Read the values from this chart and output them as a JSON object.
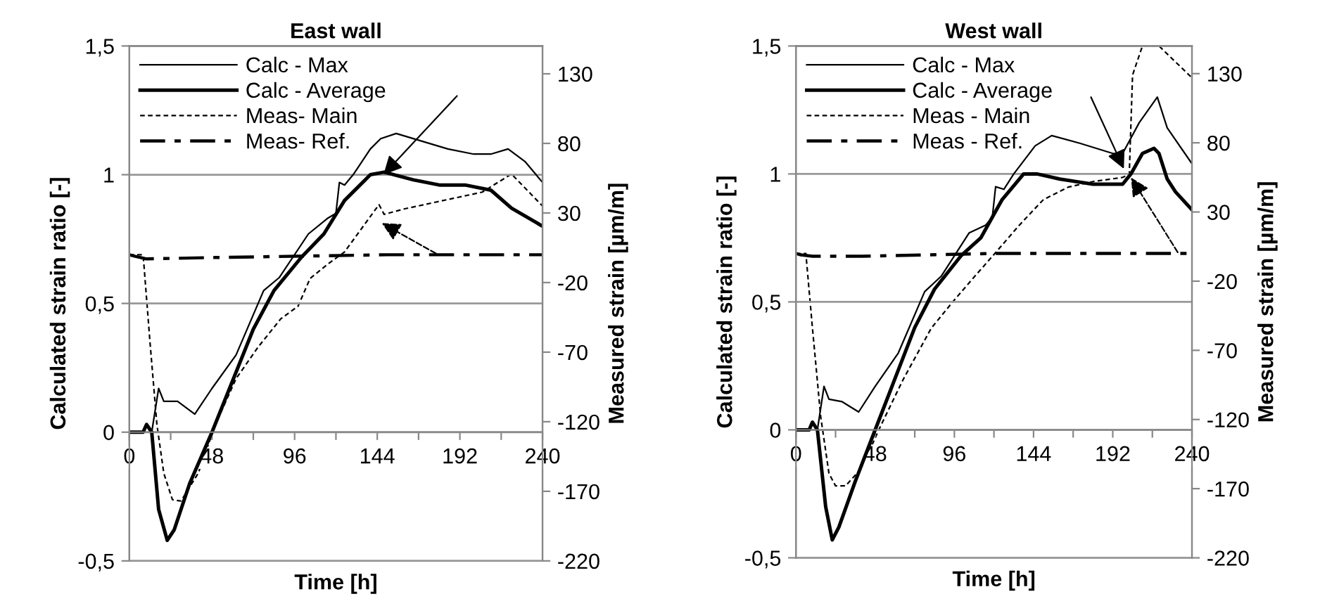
{
  "chart_data": [
    {
      "type": "line",
      "title": "East wall",
      "xlabel": "Time [h]",
      "ylabel": "Calculated strain ratio [-]",
      "y2label": "Measured strain [µm/m]",
      "xlim": [
        0,
        240
      ],
      "xticks": [
        0,
        {
          "value": 24,
          "label": null
        },
        48,
        {
          "value": 72,
          "label": null
        },
        96,
        {
          "value": 120,
          "label": null
        },
        144,
        {
          "value": 168,
          "label": null
        },
        192,
        {
          "value": 216,
          "label": null
        },
        240
      ],
      "ylim": [
        -0.5,
        1.5
      ],
      "yticks": [
        {
          "value": -0.5,
          "label": "-0,5"
        },
        0,
        {
          "value": 0.5,
          "label": "0,5"
        },
        1,
        {
          "value": 1.5,
          "label": "1,5"
        }
      ],
      "y2lim": [
        -220,
        150
      ],
      "y2ticks": [
        -220,
        -170,
        -120,
        -70,
        -20,
        30,
        80,
        130
      ],
      "grid": "y",
      "legend": "top left",
      "series": [
        {
          "name": "Calc - Max",
          "color": "#000000",
          "line_style": "solid",
          "x": [
            0,
            8,
            10,
            13,
            17,
            20,
            28,
            38,
            48,
            62,
            78,
            87,
            104,
            115,
            120,
            122,
            125,
            130,
            140,
            146,
            155,
            170,
            185,
            200,
            210,
            220,
            230,
            240
          ],
          "values": [
            0,
            0,
            0.03,
            0,
            0.17,
            0.12,
            0.12,
            0.07,
            0.17,
            0.3,
            0.55,
            0.6,
            0.77,
            0.83,
            0.85,
            0.97,
            0.96,
            1.0,
            1.1,
            1.14,
            1.16,
            1.13,
            1.1,
            1.08,
            1.08,
            1.1,
            1.05,
            0.97
          ]
        },
        {
          "name": "Calc - Average",
          "color": "#000000",
          "line_style": "solid",
          "x": [
            0,
            8,
            10,
            13,
            17,
            22,
            26,
            35,
            48,
            60,
            72,
            84,
            100,
            113,
            125,
            140,
            148,
            165,
            180,
            195,
            210,
            222,
            240
          ],
          "values": [
            0,
            0,
            0.03,
            0,
            -0.3,
            -0.42,
            -0.38,
            -0.2,
            0,
            0.2,
            0.4,
            0.55,
            0.68,
            0.77,
            0.9,
            1.0,
            1.01,
            0.98,
            0.96,
            0.96,
            0.94,
            0.87,
            0.8
          ]
        },
        {
          "name": "Meas- Main",
          "color": "#000000",
          "line_style": "dashed",
          "axis": "y2",
          "x": [
            0,
            8,
            12,
            16,
            20,
            25,
            30,
            40,
            50,
            62,
            75,
            88,
            98,
            105,
            115,
            125,
            135,
            145,
            148,
            160,
            190,
            205,
            222,
            240
          ],
          "values": [
            0,
            0,
            -63,
            -122,
            -157,
            -176,
            -177,
            -157,
            -122,
            -89,
            -66,
            -46,
            -37,
            -17,
            -7,
            2,
            19,
            36,
            29,
            33,
            41,
            45,
            58,
            35
          ]
        },
        {
          "name": "Meas- Ref.",
          "color": "#000000",
          "line_style": "dashdot",
          "axis": "y2",
          "x": [
            0,
            3,
            10,
            50,
            150,
            240
          ],
          "values": [
            0,
            -1,
            -3,
            -2,
            0,
            0
          ]
        }
      ]
    },
    {
      "type": "line",
      "title": "West wall",
      "xlabel": "Time [h]",
      "ylabel": "Calculated strain ratio [-]",
      "y2label": "Measured strain [µm/m]",
      "xlim": [
        0,
        240
      ],
      "xticks": [
        0,
        {
          "value": 24,
          "label": null
        },
        48,
        {
          "value": 72,
          "label": null
        },
        96,
        {
          "value": 120,
          "label": null
        },
        144,
        {
          "value": 168,
          "label": null
        },
        192,
        {
          "value": 216,
          "label": null
        },
        240
      ],
      "ylim": [
        -0.5,
        1.5
      ],
      "yticks": [
        {
          "value": -0.5,
          "label": "-0,5"
        },
        0,
        {
          "value": 0.5,
          "label": "0,5"
        },
        1,
        {
          "value": 1.5,
          "label": "1,5"
        }
      ],
      "y2lim": [
        -220,
        150
      ],
      "y2ticks": [
        -220,
        -170,
        -120,
        -70,
        -20,
        30,
        80,
        130
      ],
      "grid": "y",
      "legend": "top left",
      "series": [
        {
          "name": "Calc - Max",
          "color": "#000000",
          "line_style": "solid",
          "x": [
            0,
            8,
            10,
            13,
            17,
            20,
            28,
            38,
            48,
            62,
            78,
            88,
            105,
            115,
            119,
            121,
            126,
            132,
            145,
            155,
            172,
            192,
            198,
            208,
            219,
            225,
            240
          ],
          "values": [
            0,
            0,
            0.03,
            0,
            0.17,
            0.12,
            0.11,
            0.07,
            0.17,
            0.3,
            0.54,
            0.6,
            0.77,
            0.8,
            0.83,
            0.95,
            0.94,
            1.0,
            1.11,
            1.15,
            1.12,
            1.08,
            1.08,
            1.2,
            1.3,
            1.18,
            1.04
          ]
        },
        {
          "name": "Calc - Average",
          "color": "#000000",
          "line_style": "solid",
          "x": [
            0,
            8,
            10,
            13,
            18,
            22,
            26,
            36,
            48,
            60,
            72,
            84,
            100,
            112,
            125,
            138,
            146,
            160,
            180,
            198,
            203,
            210,
            217,
            220,
            225,
            230,
            240
          ],
          "values": [
            0,
            0,
            0.03,
            0,
            -0.3,
            -0.43,
            -0.38,
            -0.2,
            0,
            0.2,
            0.4,
            0.55,
            0.68,
            0.75,
            0.9,
            1.0,
            1.0,
            0.98,
            0.96,
            0.96,
            1.0,
            1.08,
            1.1,
            1.08,
            0.98,
            0.93,
            0.86
          ]
        },
        {
          "name": "Meas - Main",
          "color": "#000000",
          "line_style": "dashed",
          "axis": "y2",
          "x": [
            0,
            6,
            10,
            15,
            20,
            24,
            30,
            40,
            50,
            65,
            82,
            95,
            108,
            122,
            135,
            150,
            165,
            180,
            198,
            202,
            204,
            210,
            220,
            240
          ],
          "values": [
            0,
            0,
            -54,
            -118,
            -159,
            -168,
            -168,
            -155,
            -128,
            -91,
            -54,
            -35,
            -17,
            2,
            20,
            39,
            48,
            52,
            55,
            57,
            129,
            150,
            150,
            127
          ]
        },
        {
          "name": "Meas - Ref.",
          "color": "#000000",
          "line_style": "dashdot",
          "axis": "y2",
          "x": [
            0,
            3,
            10,
            40,
            120,
            240
          ],
          "values": [
            0,
            -1,
            -2,
            -2,
            0,
            0
          ]
        }
      ]
    }
  ]
}
